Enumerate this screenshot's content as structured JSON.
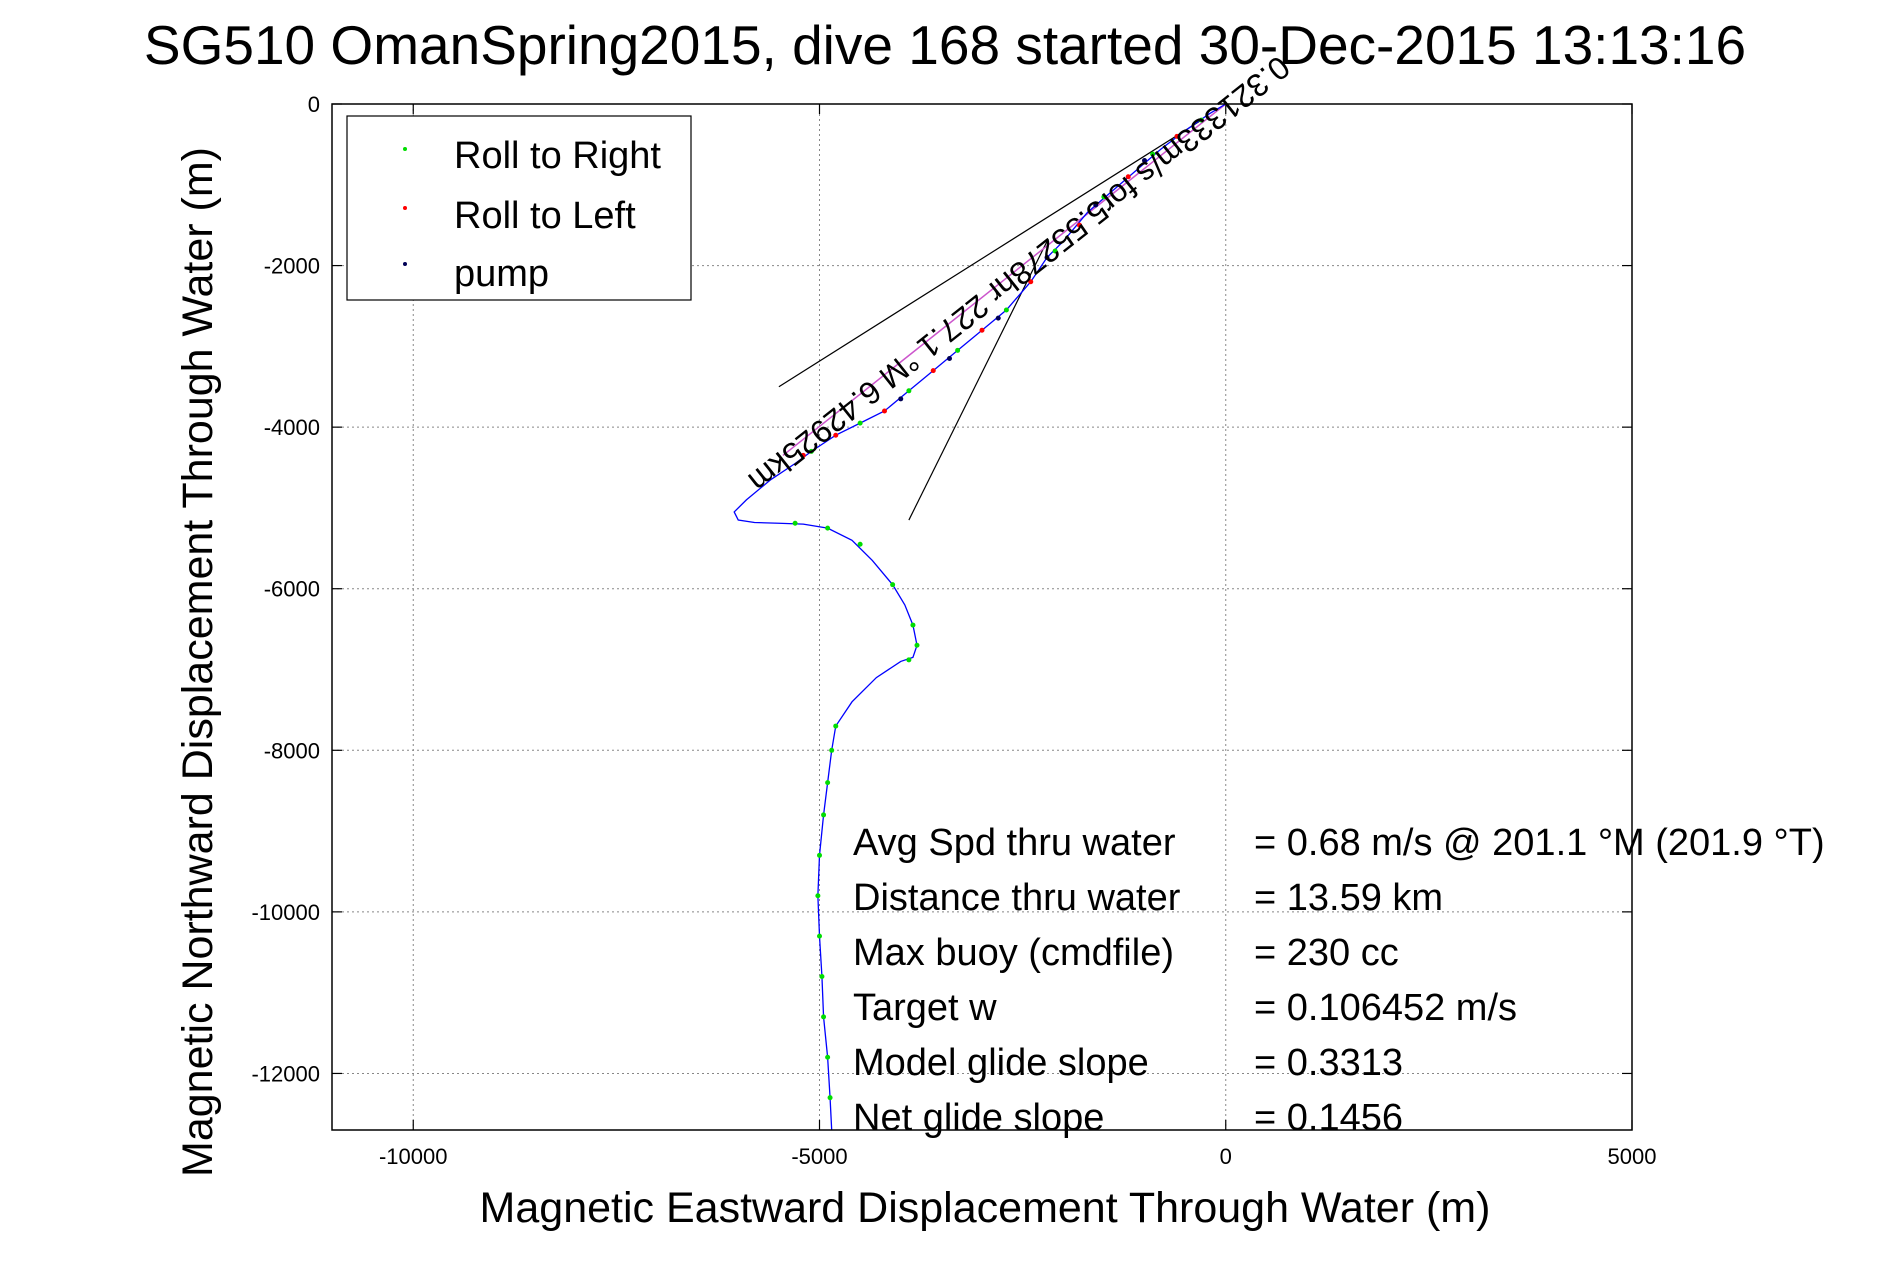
{
  "chart_data": {
    "type": "line",
    "title": "SG510 OmanSpring2015, dive 168 started 30-Dec-2015 13:13:16",
    "xlabel": "Magnetic Eastward Displacement Through Water (m)",
    "ylabel": "Magnetic Northward Displacement Through Water (m)",
    "xlim": [
      -11000,
      5000
    ],
    "ylim": [
      -12700,
      0
    ],
    "xticks": [
      -10000,
      -5000,
      0,
      5000
    ],
    "yticks": [
      0,
      -2000,
      -4000,
      -6000,
      -8000,
      -10000,
      -12000
    ],
    "xtick_labels": [
      "-10000",
      "-5000",
      "0",
      "5000"
    ],
    "ytick_labels": [
      "0",
      "-2000",
      "-4000",
      "-6000",
      "-8000",
      "-10000",
      "-12000"
    ],
    "grid": true,
    "legend_position": "top-left",
    "legend": [
      "Roll to Right",
      "Roll to Left",
      "pump"
    ],
    "colors": {
      "track": "#0000ff",
      "roll_right": "#00dd00",
      "roll_left": "#ff0000",
      "pump": "#000055",
      "heading_line": "#cc55cc",
      "cone": "#000000"
    },
    "series": [
      {
        "name": "track",
        "x": [
          0,
          -200,
          -500,
          -800,
          -1100,
          -1400,
          -1700,
          -2000,
          -2200,
          -2400,
          -2700,
          -3000,
          -3300,
          -3600,
          -3900,
          -4200,
          -4500,
          -4800,
          -5100,
          -5300,
          -5600,
          -5900,
          -6050,
          -6000,
          -5800,
          -5500,
          -5200,
          -4900,
          -4600,
          -4350,
          -4100,
          -3950,
          -3850,
          -3800,
          -3850,
          -4000,
          -4300,
          -4600,
          -4800,
          -4850,
          -4900,
          -4950,
          -5000,
          -5020,
          -5000,
          -4970,
          -4950,
          -4900,
          -4870,
          -4850
        ],
        "y": [
          0,
          -120,
          -330,
          -560,
          -820,
          -1080,
          -1340,
          -1700,
          -1900,
          -2200,
          -2550,
          -2800,
          -3050,
          -3300,
          -3550,
          -3800,
          -3950,
          -4100,
          -4300,
          -4450,
          -4650,
          -4900,
          -5050,
          -5150,
          -5180,
          -5190,
          -5200,
          -5250,
          -5400,
          -5650,
          -5950,
          -6200,
          -6450,
          -6700,
          -6850,
          -6900,
          -7100,
          -7400,
          -7700,
          -8000,
          -8400,
          -8800,
          -9300,
          -9800,
          -10300,
          -10800,
          -11300,
          -11800,
          -12300,
          -12700
        ]
      },
      {
        "name": "Roll to Right",
        "x": [
          -300,
          -900,
          -1500,
          -2100,
          -2700,
          -3300,
          -3900,
          -4500,
          -5100,
          -5300,
          -4900,
          -4500,
          -4100,
          -3850,
          -3800,
          -3900,
          -4800,
          -4850,
          -4900,
          -4950,
          -5000,
          -5020,
          -5000,
          -4970,
          -4950,
          -4900,
          -4870
        ],
        "y": [
          -200,
          -620,
          -1150,
          -1820,
          -2550,
          -3050,
          -3550,
          -3950,
          -4300,
          -5190,
          -5250,
          -5450,
          -5950,
          -6450,
          -6700,
          -6880,
          -7700,
          -8000,
          -8400,
          -8800,
          -9300,
          -9800,
          -10300,
          -10800,
          -11300,
          -11800,
          -12300
        ]
      },
      {
        "name": "Roll to Left",
        "x": [
          -600,
          -1200,
          -1800,
          -2400,
          -3000,
          -3600,
          -4200,
          -4800,
          -5200
        ],
        "y": [
          -400,
          -900,
          -1500,
          -2200,
          -2800,
          -3300,
          -3800,
          -4100,
          -4350
        ]
      },
      {
        "name": "pump",
        "x": [
          -1000,
          -1600,
          -2200,
          -2800,
          -3400,
          -4000
        ],
        "y": [
          -700,
          -1250,
          -1900,
          -2650,
          -3150,
          -3650
        ]
      },
      {
        "name": "heading",
        "x": [
          0,
          -5450
        ],
        "y": [
          0,
          -4350
        ]
      },
      {
        "name": "cone_upper",
        "x": [
          -300,
          -5500
        ],
        "y": [
          -200,
          -3500
        ]
      },
      {
        "name": "cone_lower",
        "x": [
          -2200,
          -3900
        ],
        "y": [
          -1700,
          -5150
        ]
      }
    ],
    "annotations": {
      "heading_label": "0.321333m/s for5.55278hr 227.1 °M 6.42925km",
      "stats": [
        {
          "label": "Avg Spd thru water",
          "value": "=  0.68 m/s @ 201.1 °M (201.9 °T)"
        },
        {
          "label": "Distance thru water",
          "value": "= 13.59 km"
        },
        {
          "label": "Max buoy (cmdfile)",
          "value": "= 230 cc"
        },
        {
          "label": "Target w",
          "value": "= 0.106452 m/s"
        },
        {
          "label": "Model glide slope",
          "value": "= 0.3313"
        },
        {
          "label": "Net glide slope",
          "value": "= 0.1456"
        }
      ]
    }
  }
}
